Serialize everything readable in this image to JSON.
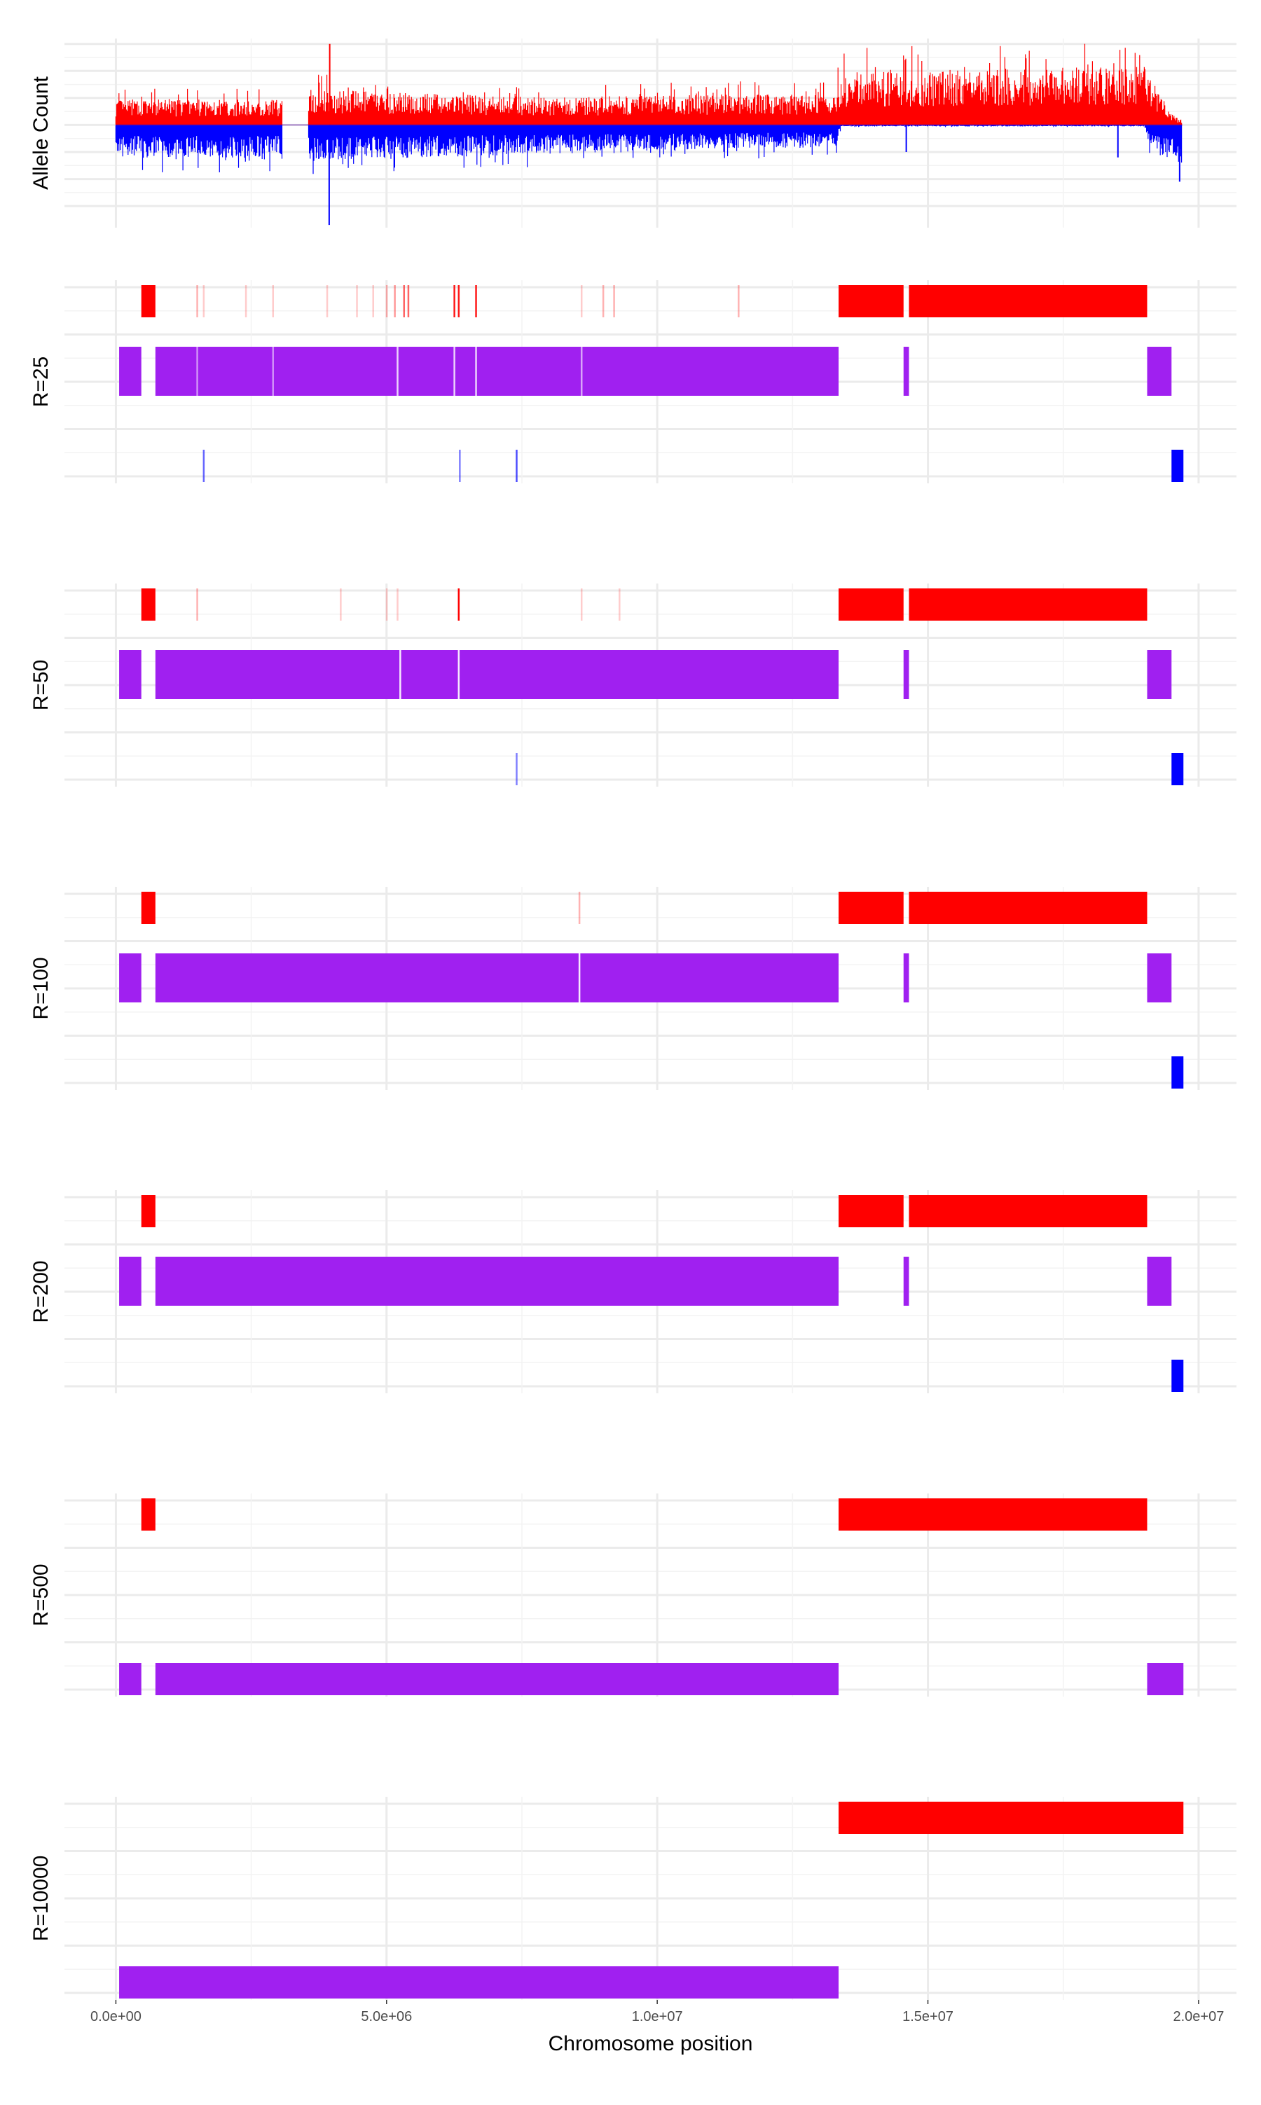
{
  "chart_data": {
    "type": "multi-panel",
    "xlabel": "Chromosome position",
    "xlim": [
      -950000,
      20700000
    ],
    "x_ticks": [
      {
        "value": 0,
        "label": "0.0e+00"
      },
      {
        "value": 5000000,
        "label": "5.0e+06"
      },
      {
        "value": 10000000,
        "label": "1.0e+07"
      },
      {
        "value": 15000000,
        "label": "1.5e+07"
      },
      {
        "value": 20000000,
        "label": "2.0e+07"
      }
    ],
    "colors": {
      "red": "#ff0000",
      "blue": "#0000ff",
      "purple": "#a020f0",
      "grid": "#ebebeb"
    },
    "allele_panel": {
      "ylabel": "Allele Count",
      "ylim": [
        -1.9,
        1.6
      ],
      "gaps": [
        [
          3070000,
          3550000
        ]
      ],
      "red_profile": [
        [
          0,
          0.35
        ],
        [
          3070000,
          0.35
        ],
        [
          3550000,
          0.5
        ],
        [
          5000000,
          0.45
        ],
        [
          8000000,
          0.38
        ],
        [
          11000000,
          0.42
        ],
        [
          13300000,
          0.42
        ],
        [
          13400000,
          0.75
        ],
        [
          19000000,
          0.8
        ],
        [
          19500000,
          0.15
        ],
        [
          19700000,
          0.05
        ]
      ],
      "blue_profile": [
        [
          0,
          -0.45
        ],
        [
          3070000,
          -0.45
        ],
        [
          3550000,
          -0.5
        ],
        [
          10000000,
          -0.35
        ],
        [
          13300000,
          -0.3
        ],
        [
          13400000,
          -0.02
        ],
        [
          19000000,
          -0.02
        ],
        [
          19100000,
          -0.3
        ],
        [
          19700000,
          -0.6
        ]
      ],
      "spikes": [
        {
          "x": 3950000,
          "y": 1.5
        },
        {
          "x": 3940000,
          "y": -1.85
        },
        {
          "x": 19650000,
          "y": -1.05
        },
        {
          "x": 14600000,
          "y": -0.5
        },
        {
          "x": 18510000,
          "y": -0.6
        }
      ]
    },
    "segment_panels": [
      {
        "label": "R=25",
        "rows": 3,
        "segments": [
          {
            "row": 0,
            "x0": 470000,
            "x1": 730000,
            "color": "red"
          },
          {
            "row": 0,
            "x0": 13350000,
            "x1": 14550000,
            "color": "red"
          },
          {
            "row": 0,
            "x0": 14650000,
            "x1": 19050000,
            "color": "red"
          },
          {
            "row": 1,
            "x0": 60000,
            "x1": 470000,
            "color": "purple"
          },
          {
            "row": 1,
            "x0": 730000,
            "x1": 13350000,
            "color": "purple"
          },
          {
            "row": 1,
            "x0": 14550000,
            "x1": 14650000,
            "color": "purple"
          },
          {
            "row": 1,
            "x0": 19050000,
            "x1": 19500000,
            "color": "purple"
          },
          {
            "row": 2,
            "x0": 19500000,
            "x1": 19720000,
            "color": "blue"
          }
        ],
        "thin_marks": [
          {
            "row": 0,
            "x": 1500000,
            "alpha": 0.3
          },
          {
            "row": 0,
            "x": 1620000,
            "alpha": 0.2
          },
          {
            "row": 0,
            "x": 2400000,
            "alpha": 0.2
          },
          {
            "row": 0,
            "x": 2900000,
            "alpha": 0.2
          },
          {
            "row": 0,
            "x": 3900000,
            "alpha": 0.2
          },
          {
            "row": 0,
            "x": 4450000,
            "alpha": 0.2
          },
          {
            "row": 0,
            "x": 4750000,
            "alpha": 0.2
          },
          {
            "row": 0,
            "x": 5000000,
            "alpha": 0.3
          },
          {
            "row": 0,
            "x": 5150000,
            "alpha": 0.4
          },
          {
            "row": 0,
            "x": 5320000,
            "alpha": 0.6
          },
          {
            "row": 0,
            "x": 5400000,
            "alpha": 0.6
          },
          {
            "row": 0,
            "x": 6250000,
            "alpha": 0.9
          },
          {
            "row": 0,
            "x": 6330000,
            "alpha": 0.9
          },
          {
            "row": 0,
            "x": 6650000,
            "alpha": 0.9
          },
          {
            "row": 0,
            "x": 8600000,
            "alpha": 0.2
          },
          {
            "row": 0,
            "x": 9000000,
            "alpha": 0.3
          },
          {
            "row": 0,
            "x": 9200000,
            "alpha": 0.3
          },
          {
            "row": 0,
            "x": 11500000,
            "alpha": 0.3
          },
          {
            "row": 1,
            "x": 1500000,
            "alpha": 0.5,
            "color": "white"
          },
          {
            "row": 1,
            "x": 2900000,
            "alpha": 0.5,
            "color": "white"
          },
          {
            "row": 1,
            "x": 5200000,
            "alpha": 0.8,
            "color": "white"
          },
          {
            "row": 1,
            "x": 6250000,
            "alpha": 0.8,
            "color": "white"
          },
          {
            "row": 1,
            "x": 6650000,
            "alpha": 0.8,
            "color": "white"
          },
          {
            "row": 1,
            "x": 8600000,
            "alpha": 0.6,
            "color": "white"
          },
          {
            "row": 2,
            "x": 1620000,
            "alpha": 0.6
          },
          {
            "row": 2,
            "x": 6350000,
            "alpha": 0.5
          },
          {
            "row": 2,
            "x": 7400000,
            "alpha": 0.7
          }
        ]
      },
      {
        "label": "R=50",
        "rows": 3,
        "segments": [
          {
            "row": 0,
            "x0": 470000,
            "x1": 730000,
            "color": "red"
          },
          {
            "row": 0,
            "x0": 13350000,
            "x1": 14550000,
            "color": "red"
          },
          {
            "row": 0,
            "x0": 14650000,
            "x1": 19050000,
            "color": "red"
          },
          {
            "row": 1,
            "x0": 60000,
            "x1": 470000,
            "color": "purple"
          },
          {
            "row": 1,
            "x0": 730000,
            "x1": 13350000,
            "color": "purple"
          },
          {
            "row": 1,
            "x0": 14550000,
            "x1": 14650000,
            "color": "purple"
          },
          {
            "row": 1,
            "x0": 19050000,
            "x1": 19500000,
            "color": "purple"
          },
          {
            "row": 2,
            "x0": 19500000,
            "x1": 19720000,
            "color": "blue"
          }
        ],
        "thin_marks": [
          {
            "row": 0,
            "x": 1500000,
            "alpha": 0.3
          },
          {
            "row": 0,
            "x": 4150000,
            "alpha": 0.2
          },
          {
            "row": 0,
            "x": 5000000,
            "alpha": 0.2
          },
          {
            "row": 0,
            "x": 5200000,
            "alpha": 0.2
          },
          {
            "row": 0,
            "x": 6330000,
            "alpha": 1.0
          },
          {
            "row": 0,
            "x": 8600000,
            "alpha": 0.2
          },
          {
            "row": 0,
            "x": 9300000,
            "alpha": 0.2
          },
          {
            "row": 1,
            "x": 5250000,
            "alpha": 0.9,
            "color": "white"
          },
          {
            "row": 1,
            "x": 6330000,
            "alpha": 0.9,
            "color": "white"
          },
          {
            "row": 2,
            "x": 7400000,
            "alpha": 0.5
          }
        ]
      },
      {
        "label": "R=100",
        "rows": 3,
        "segments": [
          {
            "row": 0,
            "x0": 470000,
            "x1": 730000,
            "color": "red"
          },
          {
            "row": 0,
            "x0": 13350000,
            "x1": 14550000,
            "color": "red"
          },
          {
            "row": 0,
            "x0": 14650000,
            "x1": 19050000,
            "color": "red"
          },
          {
            "row": 1,
            "x0": 60000,
            "x1": 470000,
            "color": "purple"
          },
          {
            "row": 1,
            "x0": 730000,
            "x1": 13350000,
            "color": "purple"
          },
          {
            "row": 1,
            "x0": 14550000,
            "x1": 14650000,
            "color": "purple"
          },
          {
            "row": 1,
            "x0": 19050000,
            "x1": 19500000,
            "color": "purple"
          },
          {
            "row": 2,
            "x0": 19500000,
            "x1": 19720000,
            "color": "blue"
          }
        ],
        "thin_marks": [
          {
            "row": 0,
            "x": 8560000,
            "alpha": 0.3
          },
          {
            "row": 1,
            "x": 8560000,
            "alpha": 0.9,
            "color": "white"
          }
        ]
      },
      {
        "label": "R=200",
        "rows": 3,
        "segments": [
          {
            "row": 0,
            "x0": 470000,
            "x1": 730000,
            "color": "red"
          },
          {
            "row": 0,
            "x0": 13350000,
            "x1": 14550000,
            "color": "red"
          },
          {
            "row": 0,
            "x0": 14650000,
            "x1": 19050000,
            "color": "red"
          },
          {
            "row": 1,
            "x0": 60000,
            "x1": 470000,
            "color": "purple"
          },
          {
            "row": 1,
            "x0": 730000,
            "x1": 13350000,
            "color": "purple"
          },
          {
            "row": 1,
            "x0": 14550000,
            "x1": 14650000,
            "color": "purple"
          },
          {
            "row": 1,
            "x0": 19050000,
            "x1": 19500000,
            "color": "purple"
          },
          {
            "row": 2,
            "x0": 19500000,
            "x1": 19720000,
            "color": "blue"
          }
        ],
        "thin_marks": []
      },
      {
        "label": "R=500",
        "rows": 2,
        "segments": [
          {
            "row": 0,
            "x0": 470000,
            "x1": 730000,
            "color": "red"
          },
          {
            "row": 0,
            "x0": 13350000,
            "x1": 19050000,
            "color": "red"
          },
          {
            "row": 1,
            "x0": 60000,
            "x1": 470000,
            "color": "purple"
          },
          {
            "row": 1,
            "x0": 730000,
            "x1": 13350000,
            "color": "purple"
          },
          {
            "row": 1,
            "x0": 19050000,
            "x1": 19720000,
            "color": "purple"
          }
        ],
        "thin_marks": []
      },
      {
        "label": "R=10000",
        "rows": 2,
        "segments": [
          {
            "row": 0,
            "x0": 13350000,
            "x1": 19720000,
            "color": "red"
          },
          {
            "row": 1,
            "x0": 60000,
            "x1": 13350000,
            "color": "purple"
          }
        ],
        "thin_marks": []
      }
    ]
  }
}
